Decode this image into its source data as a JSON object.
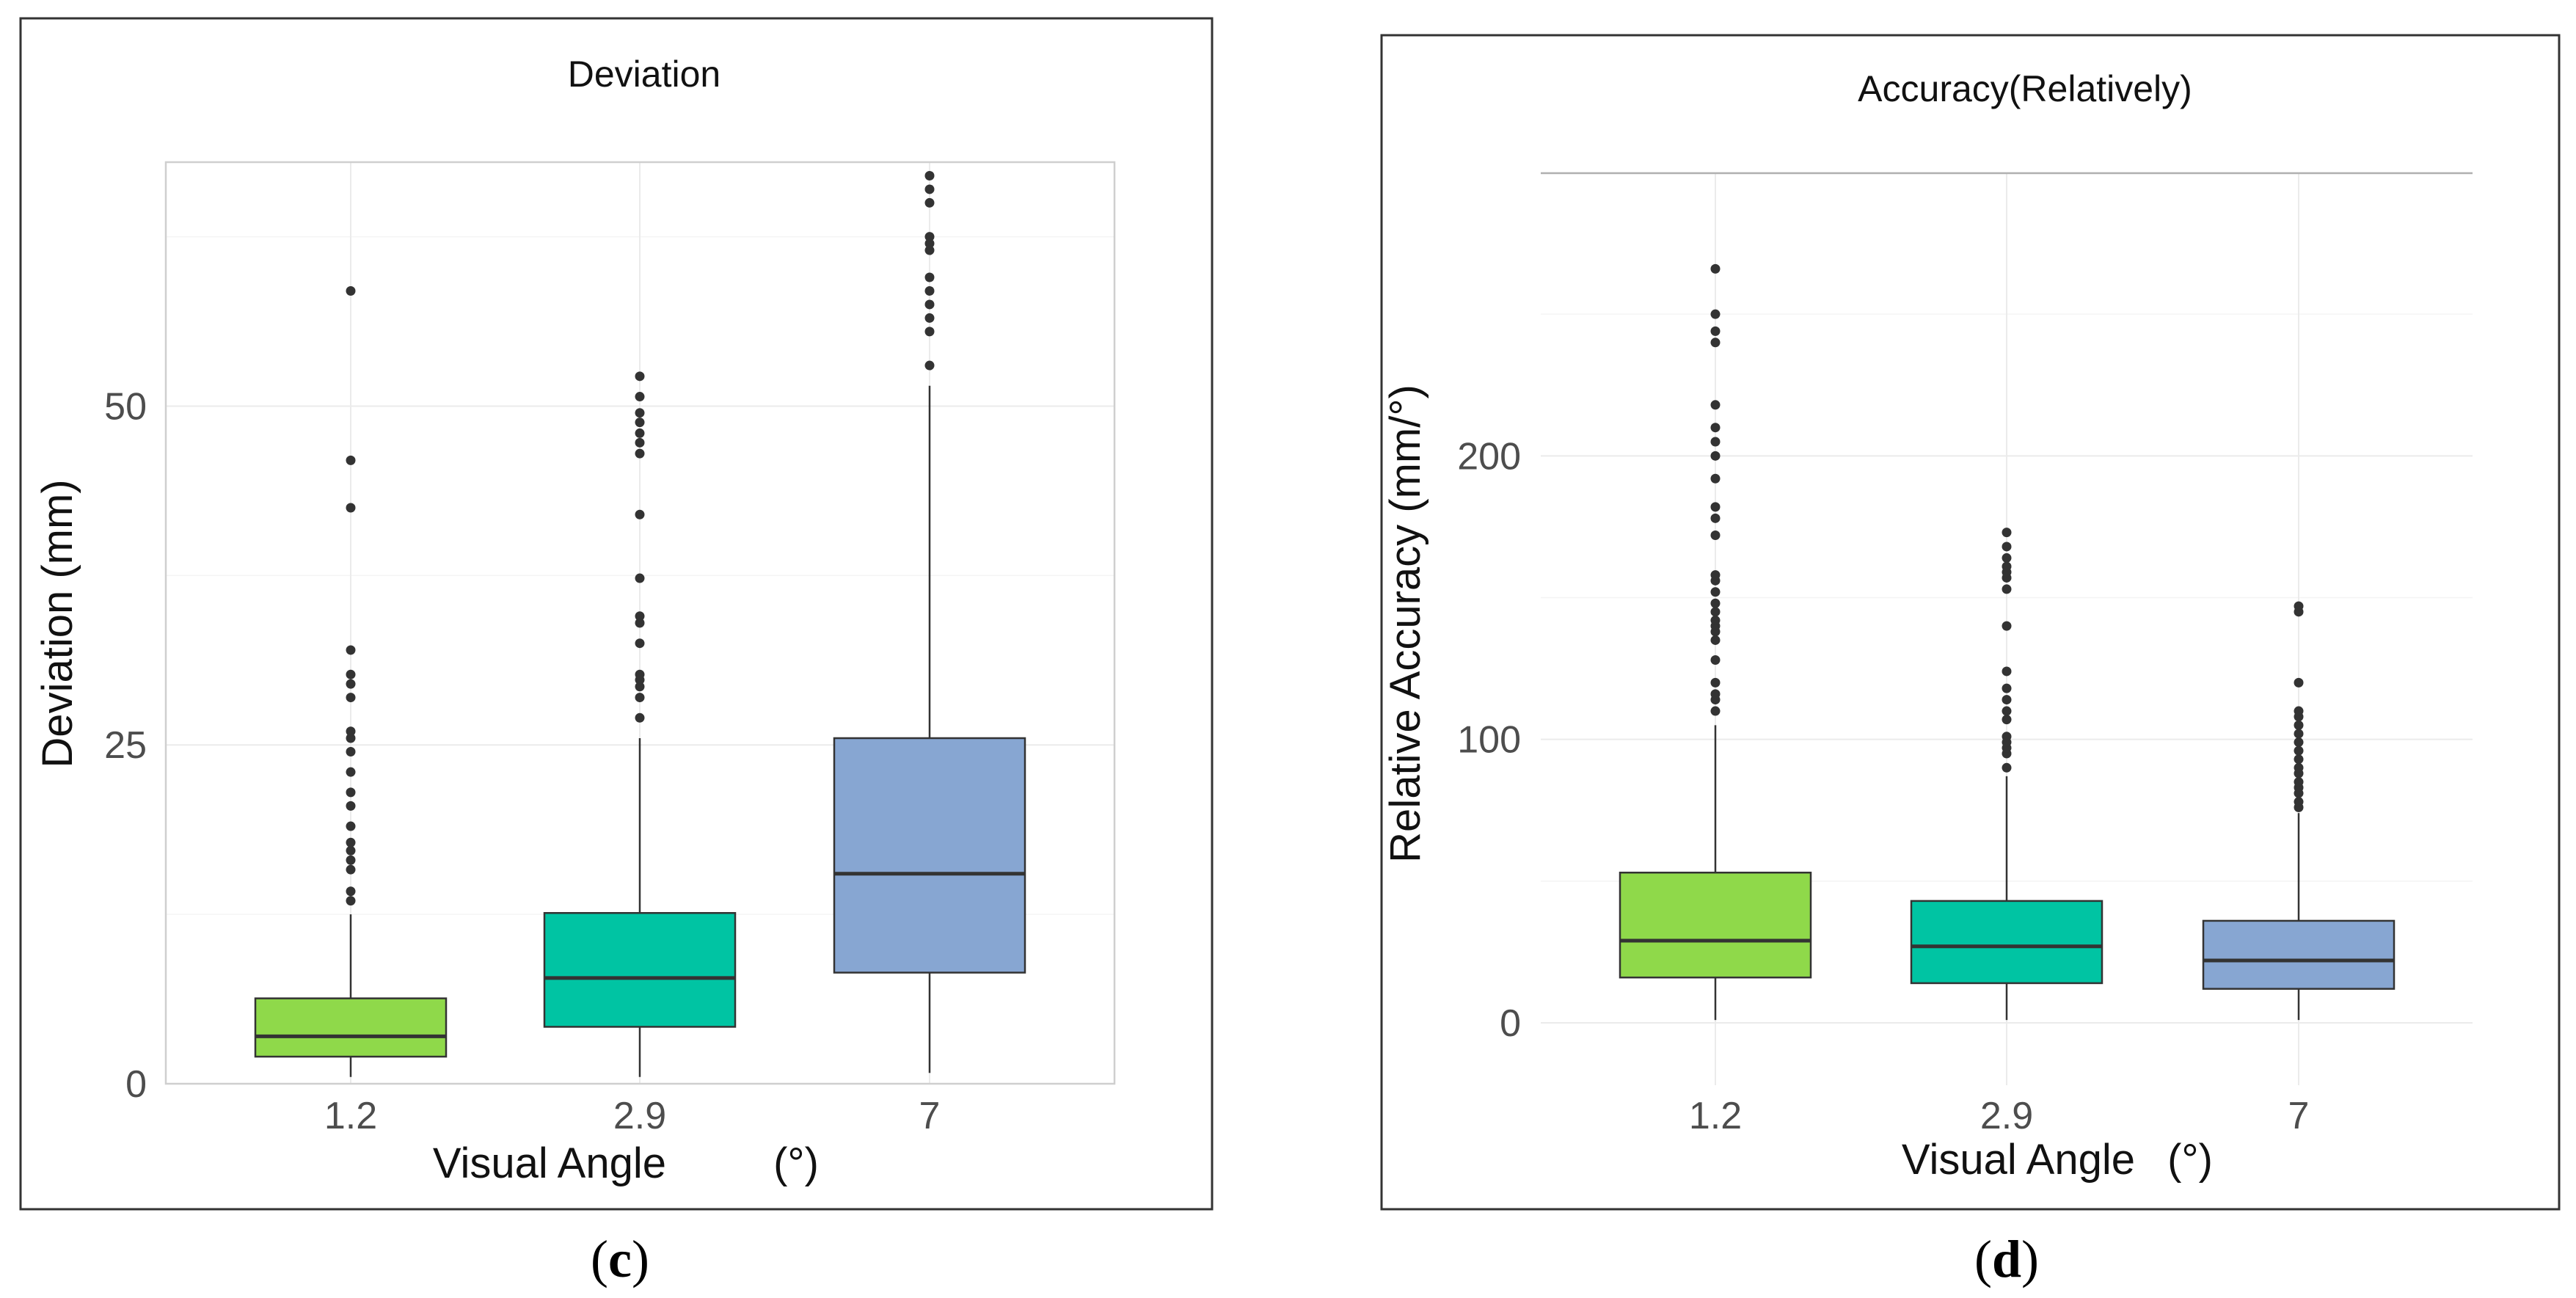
{
  "chart_data": [
    {
      "type": "boxplot",
      "title": "Deviation",
      "xlabel": "Visual Angle",
      "xlabel_unit": "(°)",
      "ylabel": "Deviation (mm)",
      "ylim": [
        0,
        68
      ],
      "yticks": [
        0,
        25,
        50
      ],
      "categories": [
        "1.2",
        "2.9",
        "7"
      ],
      "colors": [
        "#8fd94a",
        "#00c4a3",
        "#87a6d2"
      ],
      "boxes": [
        {
          "category": "1.2",
          "min": 0.5,
          "q1": 2,
          "median": 3.5,
          "q3": 6.3,
          "max": 12.5,
          "outliers": [
            13.5,
            14.2,
            15.8,
            16.5,
            17.2,
            17.8,
            19,
            20.5,
            21.5,
            23,
            24.5,
            25.5,
            26,
            28.5,
            29.5,
            30.2,
            32,
            42.5,
            46,
            58.5
          ]
        },
        {
          "category": "2.9",
          "min": 0.5,
          "q1": 4.2,
          "median": 7.8,
          "q3": 12.6,
          "max": 25.5,
          "outliers": [
            27,
            28.5,
            29.3,
            29.8,
            30.2,
            32.5,
            34,
            34.5,
            37.3,
            42,
            46.5,
            47.3,
            48,
            48.8,
            49.5,
            50.7,
            52.2
          ]
        },
        {
          "category": "7",
          "min": 0.8,
          "q1": 8.2,
          "median": 15.5,
          "q3": 25.5,
          "max": 51.5,
          "outliers": [
            53,
            55.5,
            56.5,
            57.5,
            58.5,
            59.5,
            61.5,
            62,
            62.5,
            65,
            66,
            67
          ]
        }
      ]
    },
    {
      "type": "boxplot",
      "title": "Accuracy(Relatively)",
      "xlabel": "Visual Angle",
      "xlabel_unit": "(°)",
      "ylabel": "Relative Accuracy (mm/°)",
      "ylim": [
        -22,
        300
      ],
      "yticks": [
        0,
        100,
        200
      ],
      "categories": [
        "1.2",
        "2.9",
        "7"
      ],
      "colors": [
        "#8fd94a",
        "#00c4a3",
        "#87a6d2"
      ],
      "boxes": [
        {
          "category": "1.2",
          "min": 1,
          "q1": 16,
          "median": 29,
          "q3": 53,
          "max": 105,
          "outliers": [
            110,
            114,
            116,
            120,
            128,
            135,
            138,
            140,
            142,
            145,
            148,
            152,
            156,
            158,
            172,
            178,
            182,
            192,
            200,
            205,
            210,
            218,
            240,
            244,
            250,
            266
          ]
        },
        {
          "category": "2.9",
          "min": 1,
          "q1": 14,
          "median": 27,
          "q3": 43,
          "max": 87,
          "outliers": [
            90,
            95,
            97,
            99,
            101,
            107,
            110,
            114,
            118,
            124,
            140,
            153,
            157,
            159,
            161,
            164,
            168,
            173
          ]
        },
        {
          "category": "7",
          "min": 1,
          "q1": 12,
          "median": 22,
          "q3": 36,
          "max": 74,
          "outliers": [
            76,
            78,
            81,
            83,
            85,
            88,
            90,
            93,
            96,
            99,
            102,
            105,
            108,
            110,
            120,
            145,
            147
          ]
        }
      ]
    }
  ],
  "panel_labels": {
    "left_open": "(",
    "left_letter": "c",
    "left_close": ")",
    "right_open": "(",
    "right_letter": "d",
    "right_close": ")"
  },
  "colors": {
    "frame": "#333333",
    "grid": "#ebebeb"
  }
}
